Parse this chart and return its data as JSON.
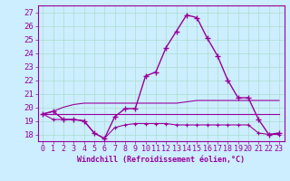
{
  "xlabel": "Windchill (Refroidissement éolien,°C)",
  "bg_color": "#cceeff",
  "line_color": "#990099",
  "grid_color": "#aaddcc",
  "xlim": [
    -0.5,
    23.5
  ],
  "ylim": [
    17.5,
    27.5
  ],
  "xticks": [
    0,
    1,
    2,
    3,
    4,
    5,
    6,
    7,
    8,
    9,
    10,
    11,
    12,
    13,
    14,
    15,
    16,
    17,
    18,
    19,
    20,
    21,
    22,
    23
  ],
  "yticks": [
    18,
    19,
    20,
    21,
    22,
    23,
    24,
    25,
    26,
    27
  ],
  "series": {
    "temp": [
      19.5,
      19.7,
      19.1,
      19.1,
      19.0,
      18.1,
      17.7,
      19.3,
      19.9,
      19.9,
      22.3,
      22.6,
      24.4,
      25.6,
      26.8,
      26.6,
      25.1,
      23.8,
      22.0,
      20.7,
      20.7,
      19.1,
      18.0,
      18.1
    ],
    "min_line": [
      19.5,
      19.1,
      19.1,
      19.1,
      19.0,
      18.1,
      17.7,
      18.5,
      18.7,
      18.8,
      18.8,
      18.8,
      18.8,
      18.7,
      18.7,
      18.7,
      18.7,
      18.7,
      18.7,
      18.7,
      18.7,
      18.1,
      18.0,
      18.0
    ],
    "max_line": [
      19.5,
      19.7,
      20.0,
      20.2,
      20.3,
      20.3,
      20.3,
      20.3,
      20.3,
      20.3,
      20.3,
      20.3,
      20.3,
      20.3,
      20.4,
      20.5,
      20.5,
      20.5,
      20.5,
      20.5,
      20.5,
      20.5,
      20.5,
      20.5
    ],
    "flat_line": [
      19.5,
      19.5,
      19.5,
      19.5,
      19.5,
      19.5,
      19.5,
      19.5,
      19.5,
      19.5,
      19.5,
      19.5,
      19.5,
      19.5,
      19.5,
      19.5,
      19.5,
      19.5,
      19.5,
      19.5,
      19.5,
      19.5,
      19.5,
      19.5
    ]
  },
  "tick_fontsize": 6.0,
  "xlabel_fontsize": 6.0
}
